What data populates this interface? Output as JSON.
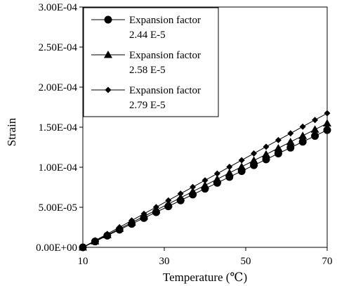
{
  "chart_data": {
    "type": "line",
    "xlabel": "Temperature (℃)",
    "ylabel": "Strain",
    "xlim": [
      10,
      70
    ],
    "ylim": [
      0,
      0.0003
    ],
    "x_ticks": [
      10,
      30,
      50,
      70
    ],
    "x_tick_labels": [
      "10",
      "30",
      "50",
      "70"
    ],
    "y_ticks": [
      0,
      5e-05,
      0.0001,
      0.00015,
      0.0002,
      0.00025,
      0.0003
    ],
    "y_tick_labels": [
      "0.00E+00",
      "5.00E-05",
      "1.00E-04",
      "1.50E-04",
      "2.00E-04",
      "2.50E-04",
      "3.00E-04"
    ],
    "grid": false,
    "legend_position": "top-left",
    "x": [
      10,
      13,
      16,
      19,
      22,
      25,
      28,
      31,
      34,
      37,
      40,
      43,
      46,
      49,
      52,
      55,
      58,
      61,
      64,
      67,
      70
    ],
    "series": [
      {
        "name_lines": [
          "Expansion factor",
          "2.44 E-5"
        ],
        "marker": "circle",
        "slope": 2.44e-05,
        "values": [
          0,
          7.3e-06,
          1.46e-05,
          2.2e-05,
          2.93e-05,
          3.66e-05,
          4.39e-05,
          5.12e-05,
          5.86e-05,
          6.59e-05,
          7.32e-05,
          8.05e-05,
          8.78e-05,
          9.52e-05,
          0.0001025,
          0.0001098,
          0.0001171,
          0.0001244,
          0.0001318,
          0.0001391,
          0.0001464
        ]
      },
      {
        "name_lines": [
          "Expansion factor",
          "2.58 E-5"
        ],
        "marker": "triangle",
        "slope": 2.58e-05,
        "values": [
          0,
          7.7e-06,
          1.55e-05,
          2.32e-05,
          3.1e-05,
          3.87e-05,
          4.64e-05,
          5.42e-05,
          6.19e-05,
          6.97e-05,
          7.74e-05,
          8.51e-05,
          9.29e-05,
          0.0001006,
          0.0001084,
          0.0001161,
          0.0001238,
          0.0001316,
          0.0001393,
          0.0001471,
          0.0001548
        ]
      },
      {
        "name_lines": [
          "Expansion factor",
          "2.79 E-5"
        ],
        "marker": "diamond",
        "slope": 2.79e-05,
        "values": [
          0,
          8.4e-06,
          1.67e-05,
          2.51e-05,
          3.35e-05,
          4.19e-05,
          5.02e-05,
          5.86e-05,
          6.7e-05,
          7.53e-05,
          8.37e-05,
          9.21e-05,
          0.0001004,
          0.0001088,
          0.0001172,
          0.0001256,
          0.0001339,
          0.0001423,
          0.0001507,
          0.000159,
          0.0001674
        ]
      }
    ]
  }
}
